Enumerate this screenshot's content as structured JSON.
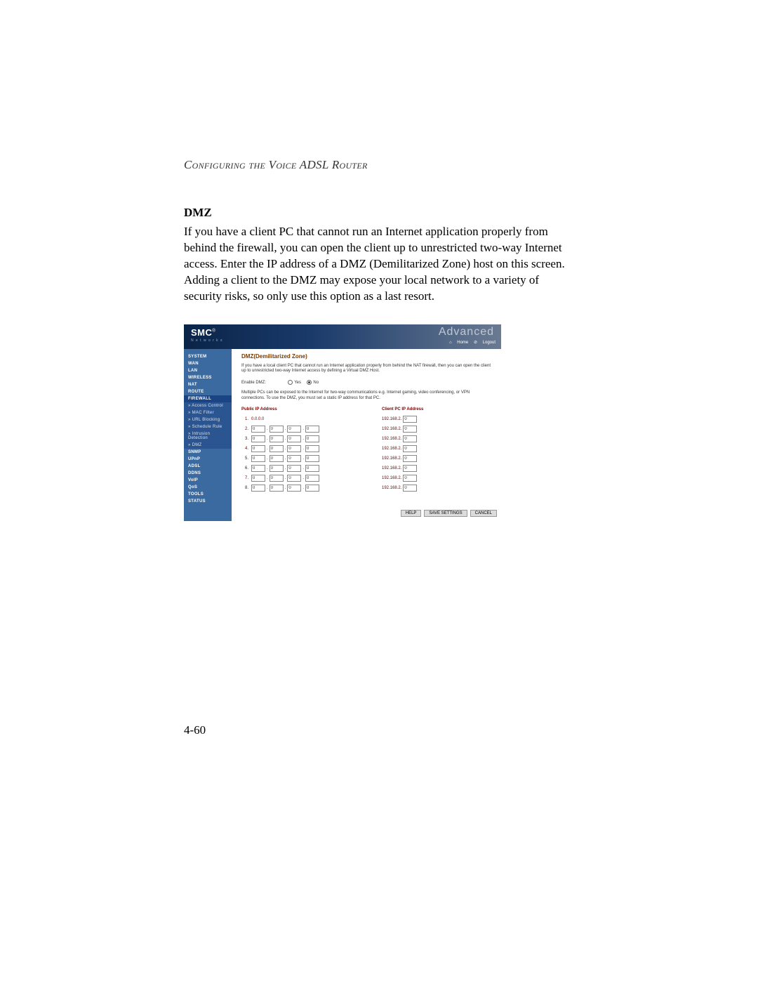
{
  "running_head": "Configuring the Voice ADSL Router",
  "section_title": "DMZ",
  "body_text": "If you have a client PC that cannot run an Internet application properly from behind the firewall, you can open the client up to unrestricted two-way Internet access. Enter the IP address of a DMZ (Demilitarized Zone) host on this screen. Adding a client to the DMZ may expose your local network to a variety of security risks, so only use this option as a last resort.",
  "page_number": "4-60",
  "screenshot": {
    "logo": "SMC",
    "logo_sub": "N e t w o r k s",
    "brand": "Advanced",
    "home": "Home",
    "logout": "Logout",
    "nav": {
      "system": "SYSTEM",
      "wan": "WAN",
      "lan": "LAN",
      "wireless": "WIRELESS",
      "nat": "NAT",
      "route": "ROUTE",
      "firewall": "FIREWALL",
      "sub_access": "Access Control",
      "sub_mac": "MAC Filter",
      "sub_url": "URL Blocking",
      "sub_sched": "Schedule Rule",
      "sub_intr": "Intrusion Detection",
      "sub_dmz": "DMZ",
      "snmp": "SNMP",
      "upnp": "UPnP",
      "adsl": "ADSL",
      "ddns": "DDNS",
      "voip": "VoIP",
      "qos": "QoS",
      "tools": "TOOLS",
      "status": "STATUS"
    },
    "content": {
      "title": "DMZ(Demilitarized Zone)",
      "para1": "If you have a local client PC that cannot run an Internet application properly from behind the NAT firewall, then you can open the client up to unrestricted two-way Internet access by defining a Virtual DMZ Host.",
      "enable_label": "Enable DMZ:",
      "yes": "Yes",
      "no": "No",
      "enable_value": "no",
      "para2": "Multiple PCs can be exposed to the Internet for two-way communications e.g. Internet gaming, video conferencing, or VPN connections. To use the DMZ, you must set a static IP address for that PC.",
      "col1": "Public IP Address",
      "col2": "Client PC IP Address",
      "row1_public": "0.0.0.0",
      "client_prefix": "192.168.2.",
      "rows": [
        {
          "n": "1.",
          "oct": [
            "",
            "",
            "",
            ""
          ],
          "client": ""
        },
        {
          "n": "2.",
          "oct": [
            "0",
            "0",
            "0",
            "0"
          ],
          "client": "0"
        },
        {
          "n": "3.",
          "oct": [
            "0",
            "0",
            "0",
            "0"
          ],
          "client": "0"
        },
        {
          "n": "4.",
          "oct": [
            "0",
            "0",
            "0",
            "0"
          ],
          "client": "0"
        },
        {
          "n": "5.",
          "oct": [
            "0",
            "0",
            "0",
            "0"
          ],
          "client": "0"
        },
        {
          "n": "6.",
          "oct": [
            "0",
            "0",
            "0",
            "0"
          ],
          "client": "0"
        },
        {
          "n": "7.",
          "oct": [
            "0",
            "0",
            "0",
            "0"
          ],
          "client": "0"
        },
        {
          "n": "8.",
          "oct": [
            "0",
            "0",
            "0",
            "0"
          ],
          "client": "0"
        }
      ],
      "help": "HELP",
      "save": "SAVE SETTINGS",
      "cancel": "CANCEL"
    }
  }
}
